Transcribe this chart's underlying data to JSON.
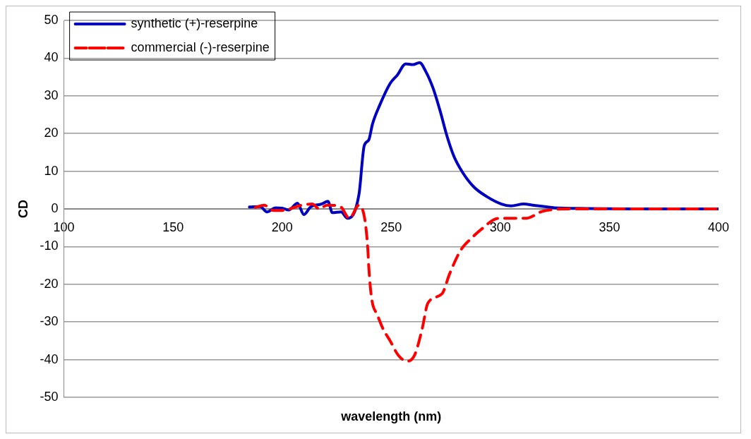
{
  "chart_data": {
    "type": "line",
    "xlabel": "wavelength (nm)",
    "ylabel": "CD",
    "xlim": [
      100,
      400
    ],
    "xticks": [
      100,
      150,
      200,
      250,
      300,
      350,
      400
    ],
    "ylim": [
      -50,
      50
    ],
    "yticks": [
      -50,
      -40,
      -30,
      -20,
      -10,
      0,
      10,
      20,
      30,
      40,
      50
    ],
    "grid": "y",
    "legend": "top left",
    "marker": "none",
    "series": [
      {
        "name": "synthetic (+)-reserpine",
        "color": "#0000c0",
        "line_style": "solid",
        "x": [
          185,
          190,
          193,
          197,
          200,
          203,
          207,
          210,
          213,
          218,
          221,
          223,
          227,
          230,
          235.2,
          237.6,
          239.7,
          241.4,
          244.7,
          249.5,
          252.9,
          256.6,
          260,
          263,
          265.8,
          269.2,
          272.6,
          275.3,
          278.7,
          282.8,
          287.9,
          293.7,
          300.5,
          304.9,
          310.7,
          315,
          325,
          340,
          360,
          380,
          400
        ],
        "values": [
          0.5,
          0.6,
          -0.8,
          0.3,
          0.2,
          -0.3,
          1.5,
          -1.5,
          0.5,
          1.3,
          2,
          -1,
          -0.8,
          -2.5,
          3.8,
          16.7,
          18.3,
          22.5,
          27.5,
          33.3,
          35.6,
          38.5,
          38.3,
          38.8,
          36.5,
          32,
          25.6,
          19.8,
          14,
          9.6,
          5.8,
          3.3,
          1.3,
          0.8,
          1.3,
          1,
          0.3,
          0.1,
          0,
          0,
          0
        ]
      },
      {
        "name": "commercial (-)-reserpine",
        "color": "#ff0000",
        "line_style": "dashed",
        "x": [
          187.7,
          191.7,
          196,
          200,
          209,
          213.8,
          217,
          220.6,
          226.7,
          230.8,
          235.2,
          238,
          239.3,
          239.7,
          241,
          243.7,
          246.4,
          249.5,
          253.2,
          257.3,
          260.7,
          264.1,
          266.8,
          273.3,
          276.7,
          281.8,
          286.9,
          291.3,
          299.1,
          311.7,
          319.5,
          333,
          350,
          370,
          400
        ],
        "values": [
          0.4,
          1,
          -0.4,
          -0.4,
          1,
          1.3,
          0,
          1,
          0.6,
          -2.5,
          1,
          -3.2,
          -11,
          -15.4,
          -23.7,
          -28.2,
          -32,
          -35,
          -38.8,
          -40.4,
          -38.8,
          -32,
          -25,
          -22.5,
          -17.3,
          -11,
          -7.7,
          -5.4,
          -2.5,
          -2.5,
          -0.6,
          0,
          0,
          0,
          0
        ]
      }
    ]
  }
}
